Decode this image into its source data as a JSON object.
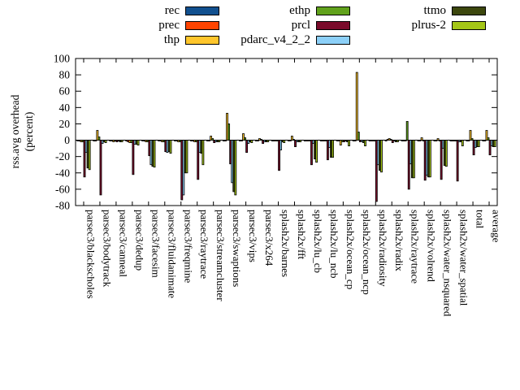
{
  "ylabel": {
    "line1": "rss.avg overhead",
    "line2": "(percent)"
  },
  "chart_data": {
    "type": "bar",
    "title": "",
    "xlabel": "",
    "ylabel": "rss.avg overhead (percent)",
    "ylim": [
      -80,
      100
    ],
    "yticks": [
      -80,
      -60,
      -40,
      -20,
      0,
      20,
      40,
      60,
      80,
      100
    ],
    "grid": false,
    "legend_position": "top",
    "zero_line": true,
    "categories": [
      "parsec3/blackscholes",
      "parsec3/bodytrack",
      "parsec3/canneal",
      "parsec3/dedup",
      "parsec3/facesim",
      "parsec3/fluidanimate",
      "parsec3/freqmine",
      "parsec3/raytrace",
      "parsec3/streamcluster",
      "parsec3/swaptions",
      "parsec3/vips",
      "parsec3/x264",
      "splash2x/barnes",
      "splash2x/fft",
      "splash2x/lu_cb",
      "splash2x/lu_ncb",
      "splash2x/ocean_cp",
      "splash2x/ocean_ncp",
      "splash2x/radiosity",
      "splash2x/radix",
      "splash2x/raytrace",
      "splash2x/volrend",
      "splash2x/water_nsquared",
      "splash2x/water_spatial",
      "total",
      "average"
    ],
    "series": [
      {
        "name": "rec",
        "color": "#11508f",
        "values": [
          -1,
          -1,
          -1,
          -1,
          -1,
          -1,
          -1,
          -1,
          -1,
          -1,
          -1,
          -1,
          -1,
          -1,
          -1,
          -1,
          -1,
          -1,
          -1,
          -1,
          -1,
          -1,
          -1,
          -1,
          -1,
          -1
        ]
      },
      {
        "name": "prec",
        "color": "#ff4400",
        "values": [
          -1,
          -1,
          -1,
          -2,
          -1,
          -1,
          -1,
          -1,
          -1,
          -1,
          -1,
          -1,
          -1,
          -1,
          -1,
          -1,
          -1,
          -1,
          -1,
          1,
          -1,
          -1,
          -1,
          -1,
          -1,
          -1
        ]
      },
      {
        "name": "thp",
        "color": "#ffc62c",
        "values": [
          -2,
          12,
          -2,
          -3,
          -2,
          -2,
          -2,
          -2,
          5,
          33,
          8,
          2,
          -1,
          5,
          -1,
          -1,
          -6,
          83,
          -1,
          2,
          -1,
          3,
          2,
          -1,
          12,
          12
        ]
      },
      {
        "name": "ethp",
        "color": "#61a21c",
        "values": [
          -2,
          4,
          -1,
          -3,
          -2,
          -2,
          -2,
          -2,
          2,
          20,
          3,
          1,
          -1,
          1,
          -1,
          -1,
          -2,
          10,
          -1,
          1,
          23,
          -1,
          -1,
          -1,
          2,
          3
        ]
      },
      {
        "name": "prcl",
        "color": "#7a0a2a",
        "values": [
          -45,
          -67,
          -2,
          -42,
          -19,
          -14,
          -73,
          -48,
          -3,
          -29,
          -15,
          -4,
          -37,
          -8,
          -30,
          -24,
          -2,
          -2,
          -75,
          -3,
          -60,
          -49,
          -48,
          -50,
          -18,
          -18
        ]
      },
      {
        "name": "pdarc_v4_2_2",
        "color": "#8cd0f8",
        "values": [
          -15,
          -4,
          -1,
          -5,
          -30,
          -15,
          -67,
          -15,
          -2,
          -52,
          -4,
          -2,
          -12,
          -2,
          -4,
          -9,
          -1,
          -2,
          -30,
          -1,
          -29,
          -43,
          -10,
          -2,
          -9,
          -7
        ]
      },
      {
        "name": "ttmo",
        "color": "#3c470d",
        "values": [
          -34,
          -2,
          -2,
          -5,
          -32,
          -14,
          -40,
          -16,
          -2,
          -63,
          -2,
          -2,
          -2,
          -2,
          -23,
          -21,
          -2,
          -3,
          -37,
          -2,
          -46,
          -45,
          -31,
          -2,
          -8,
          -8
        ]
      },
      {
        "name": "plrus-2",
        "color": "#a4c616",
        "values": [
          -36,
          -3,
          -2,
          -6,
          -33,
          -16,
          -40,
          -30,
          -2,
          -67,
          -3,
          -2,
          -3,
          -2,
          -27,
          -21,
          -7,
          -7,
          -39,
          -2,
          -46,
          -45,
          -32,
          -7,
          -8,
          -8
        ]
      }
    ],
    "legend_columns": [
      [
        0,
        1,
        2
      ],
      [
        3,
        4,
        5
      ],
      [
        6,
        7
      ]
    ]
  }
}
